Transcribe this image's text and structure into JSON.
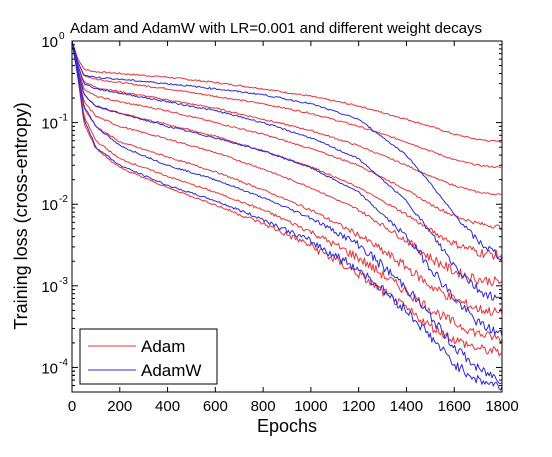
{
  "chart_data": {
    "type": "line",
    "title": "Adam and AdamW with LR=0.001 and different weight decays",
    "xlabel": "Epochs",
    "ylabel": "Training loss (cross-entropy)",
    "xlim": [
      0,
      1800
    ],
    "ylim": [
      5e-05,
      1
    ],
    "yscale": "log",
    "x_ticks": [
      "0",
      "200",
      "400",
      "600",
      "800",
      "1000",
      "1200",
      "1400",
      "1600",
      "1800"
    ],
    "y_ticks": [
      {
        "value": 1,
        "base": "10",
        "exp": "0"
      },
      {
        "value": 0.1,
        "base": "10",
        "exp": "-1"
      },
      {
        "value": 0.01,
        "base": "10",
        "exp": "-2"
      },
      {
        "value": 0.001,
        "base": "10",
        "exp": "-3"
      },
      {
        "value": 0.0001,
        "base": "10",
        "exp": "-4"
      }
    ],
    "grid": false,
    "legend_position": "bottom-left",
    "legend": [
      {
        "label": "Adam",
        "color": "#e8343a"
      },
      {
        "label": "AdamW",
        "color": "#2b2bd6"
      }
    ],
    "x": [
      0,
      25,
      50,
      100,
      200,
      400,
      600,
      800,
      1000,
      1200,
      1400,
      1500,
      1600,
      1700,
      1800
    ],
    "series": [
      {
        "group": "Adam",
        "color": "#e8343a",
        "values": [
          1,
          0.6,
          0.45,
          0.42,
          0.4,
          0.36,
          0.31,
          0.26,
          0.21,
          0.16,
          0.11,
          0.09,
          0.072,
          0.062,
          0.058
        ]
      },
      {
        "group": "Adam",
        "color": "#e8343a",
        "values": [
          1,
          0.55,
          0.38,
          0.34,
          0.31,
          0.26,
          0.21,
          0.17,
          0.13,
          0.09,
          0.058,
          0.045,
          0.035,
          0.03,
          0.028
        ]
      },
      {
        "group": "Adam",
        "color": "#e8343a",
        "values": [
          1,
          0.5,
          0.32,
          0.27,
          0.24,
          0.19,
          0.15,
          0.11,
          0.08,
          0.052,
          0.03,
          0.022,
          0.017,
          0.014,
          0.013
        ]
      },
      {
        "group": "Adam",
        "color": "#e8343a",
        "values": [
          1,
          0.45,
          0.26,
          0.21,
          0.18,
          0.14,
          0.1,
          0.072,
          0.048,
          0.03,
          0.015,
          0.01,
          0.0072,
          0.0058,
          0.0052
        ]
      },
      {
        "group": "Adam",
        "color": "#e8343a",
        "values": [
          1,
          0.42,
          0.22,
          0.16,
          0.13,
          0.095,
          0.068,
          0.045,
          0.029,
          0.016,
          0.0075,
          0.0048,
          0.0033,
          0.0026,
          0.0023
        ]
      },
      {
        "group": "Adam",
        "color": "#e8343a",
        "values": [
          1,
          0.4,
          0.18,
          0.12,
          0.09,
          0.063,
          0.043,
          0.027,
          0.016,
          0.0085,
          0.0036,
          0.0022,
          0.0015,
          0.0012,
          0.0011
        ]
      },
      {
        "group": "Adam",
        "color": "#e8343a",
        "values": [
          1,
          0.38,
          0.15,
          0.09,
          0.058,
          0.038,
          0.025,
          0.015,
          0.0085,
          0.0042,
          0.0017,
          0.001,
          0.00068,
          0.00052,
          0.00046
        ]
      },
      {
        "group": "Adam",
        "color": "#e8343a",
        "values": [
          1,
          0.36,
          0.12,
          0.06,
          0.036,
          0.022,
          0.014,
          0.0085,
          0.0046,
          0.0022,
          0.00085,
          0.00052,
          0.00035,
          0.00026,
          0.00022
        ]
      },
      {
        "group": "Adam",
        "color": "#e8343a",
        "values": [
          1,
          0.35,
          0.1,
          0.048,
          0.028,
          0.016,
          0.0098,
          0.0058,
          0.0031,
          0.0014,
          0.00052,
          0.00032,
          0.00022,
          0.00017,
          0.00015
        ]
      },
      {
        "group": "AdamW",
        "color": "#2b2bd6",
        "values": [
          1,
          0.55,
          0.38,
          0.36,
          0.34,
          0.3,
          0.26,
          0.22,
          0.17,
          0.11,
          0.04,
          0.018,
          0.0075,
          0.0035,
          0.0022
        ]
      },
      {
        "group": "AdamW",
        "color": "#2b2bd6",
        "values": [
          1,
          0.5,
          0.3,
          0.26,
          0.23,
          0.18,
          0.14,
          0.1,
          0.065,
          0.036,
          0.011,
          0.0045,
          0.0018,
          0.0009,
          0.00065
        ]
      },
      {
        "group": "AdamW",
        "color": "#2b2bd6",
        "values": [
          1,
          0.45,
          0.22,
          0.16,
          0.13,
          0.09,
          0.065,
          0.045,
          0.028,
          0.014,
          0.004,
          0.0017,
          0.0007,
          0.00035,
          0.00025
        ]
      },
      {
        "group": "AdamW",
        "color": "#2b2bd6",
        "values": [
          1,
          0.4,
          0.16,
          0.09,
          0.052,
          0.03,
          0.02,
          0.012,
          0.0068,
          0.0032,
          0.00095,
          0.00042,
          0.00018,
          9.5e-05,
          7e-05
        ]
      },
      {
        "group": "AdamW",
        "color": "#2b2bd6",
        "values": [
          1,
          0.36,
          0.11,
          0.05,
          0.03,
          0.017,
          0.011,
          0.0065,
          0.0035,
          0.0016,
          0.0005,
          0.00024,
          0.00011,
          7e-05,
          5.8e-05
        ]
      }
    ]
  }
}
